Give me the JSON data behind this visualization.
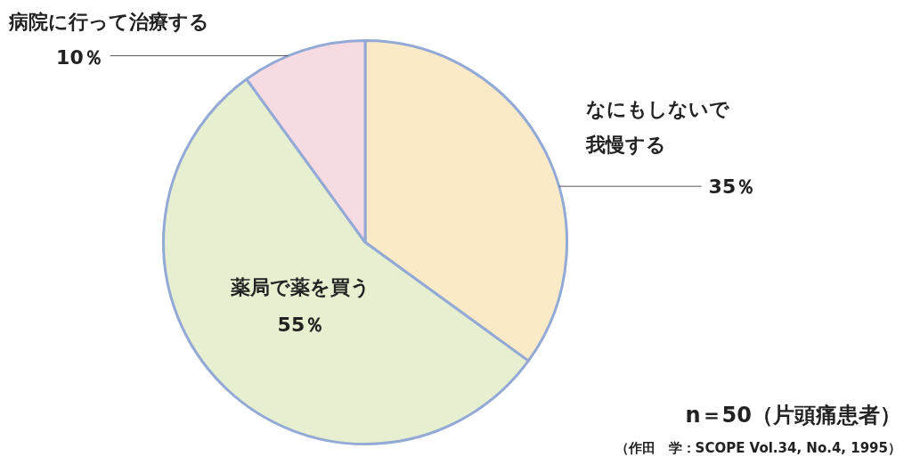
{
  "chart_data": {
    "type": "pie",
    "categories": [
      "なにもしないで我慢する",
      "薬局で薬を買う",
      "病院に行って治療する"
    ],
    "values": [
      35,
      55,
      10
    ],
    "value_labels": [
      "35％",
      "55％",
      "10％"
    ],
    "colors": [
      "#faeac8",
      "#e6efd0",
      "#f7dbe3"
    ],
    "legend": false,
    "annotations": [
      "n＝50（片頭痛患者）",
      "（作田　学：SCOPE Vol.34, No.4, 1995）"
    ]
  }
}
